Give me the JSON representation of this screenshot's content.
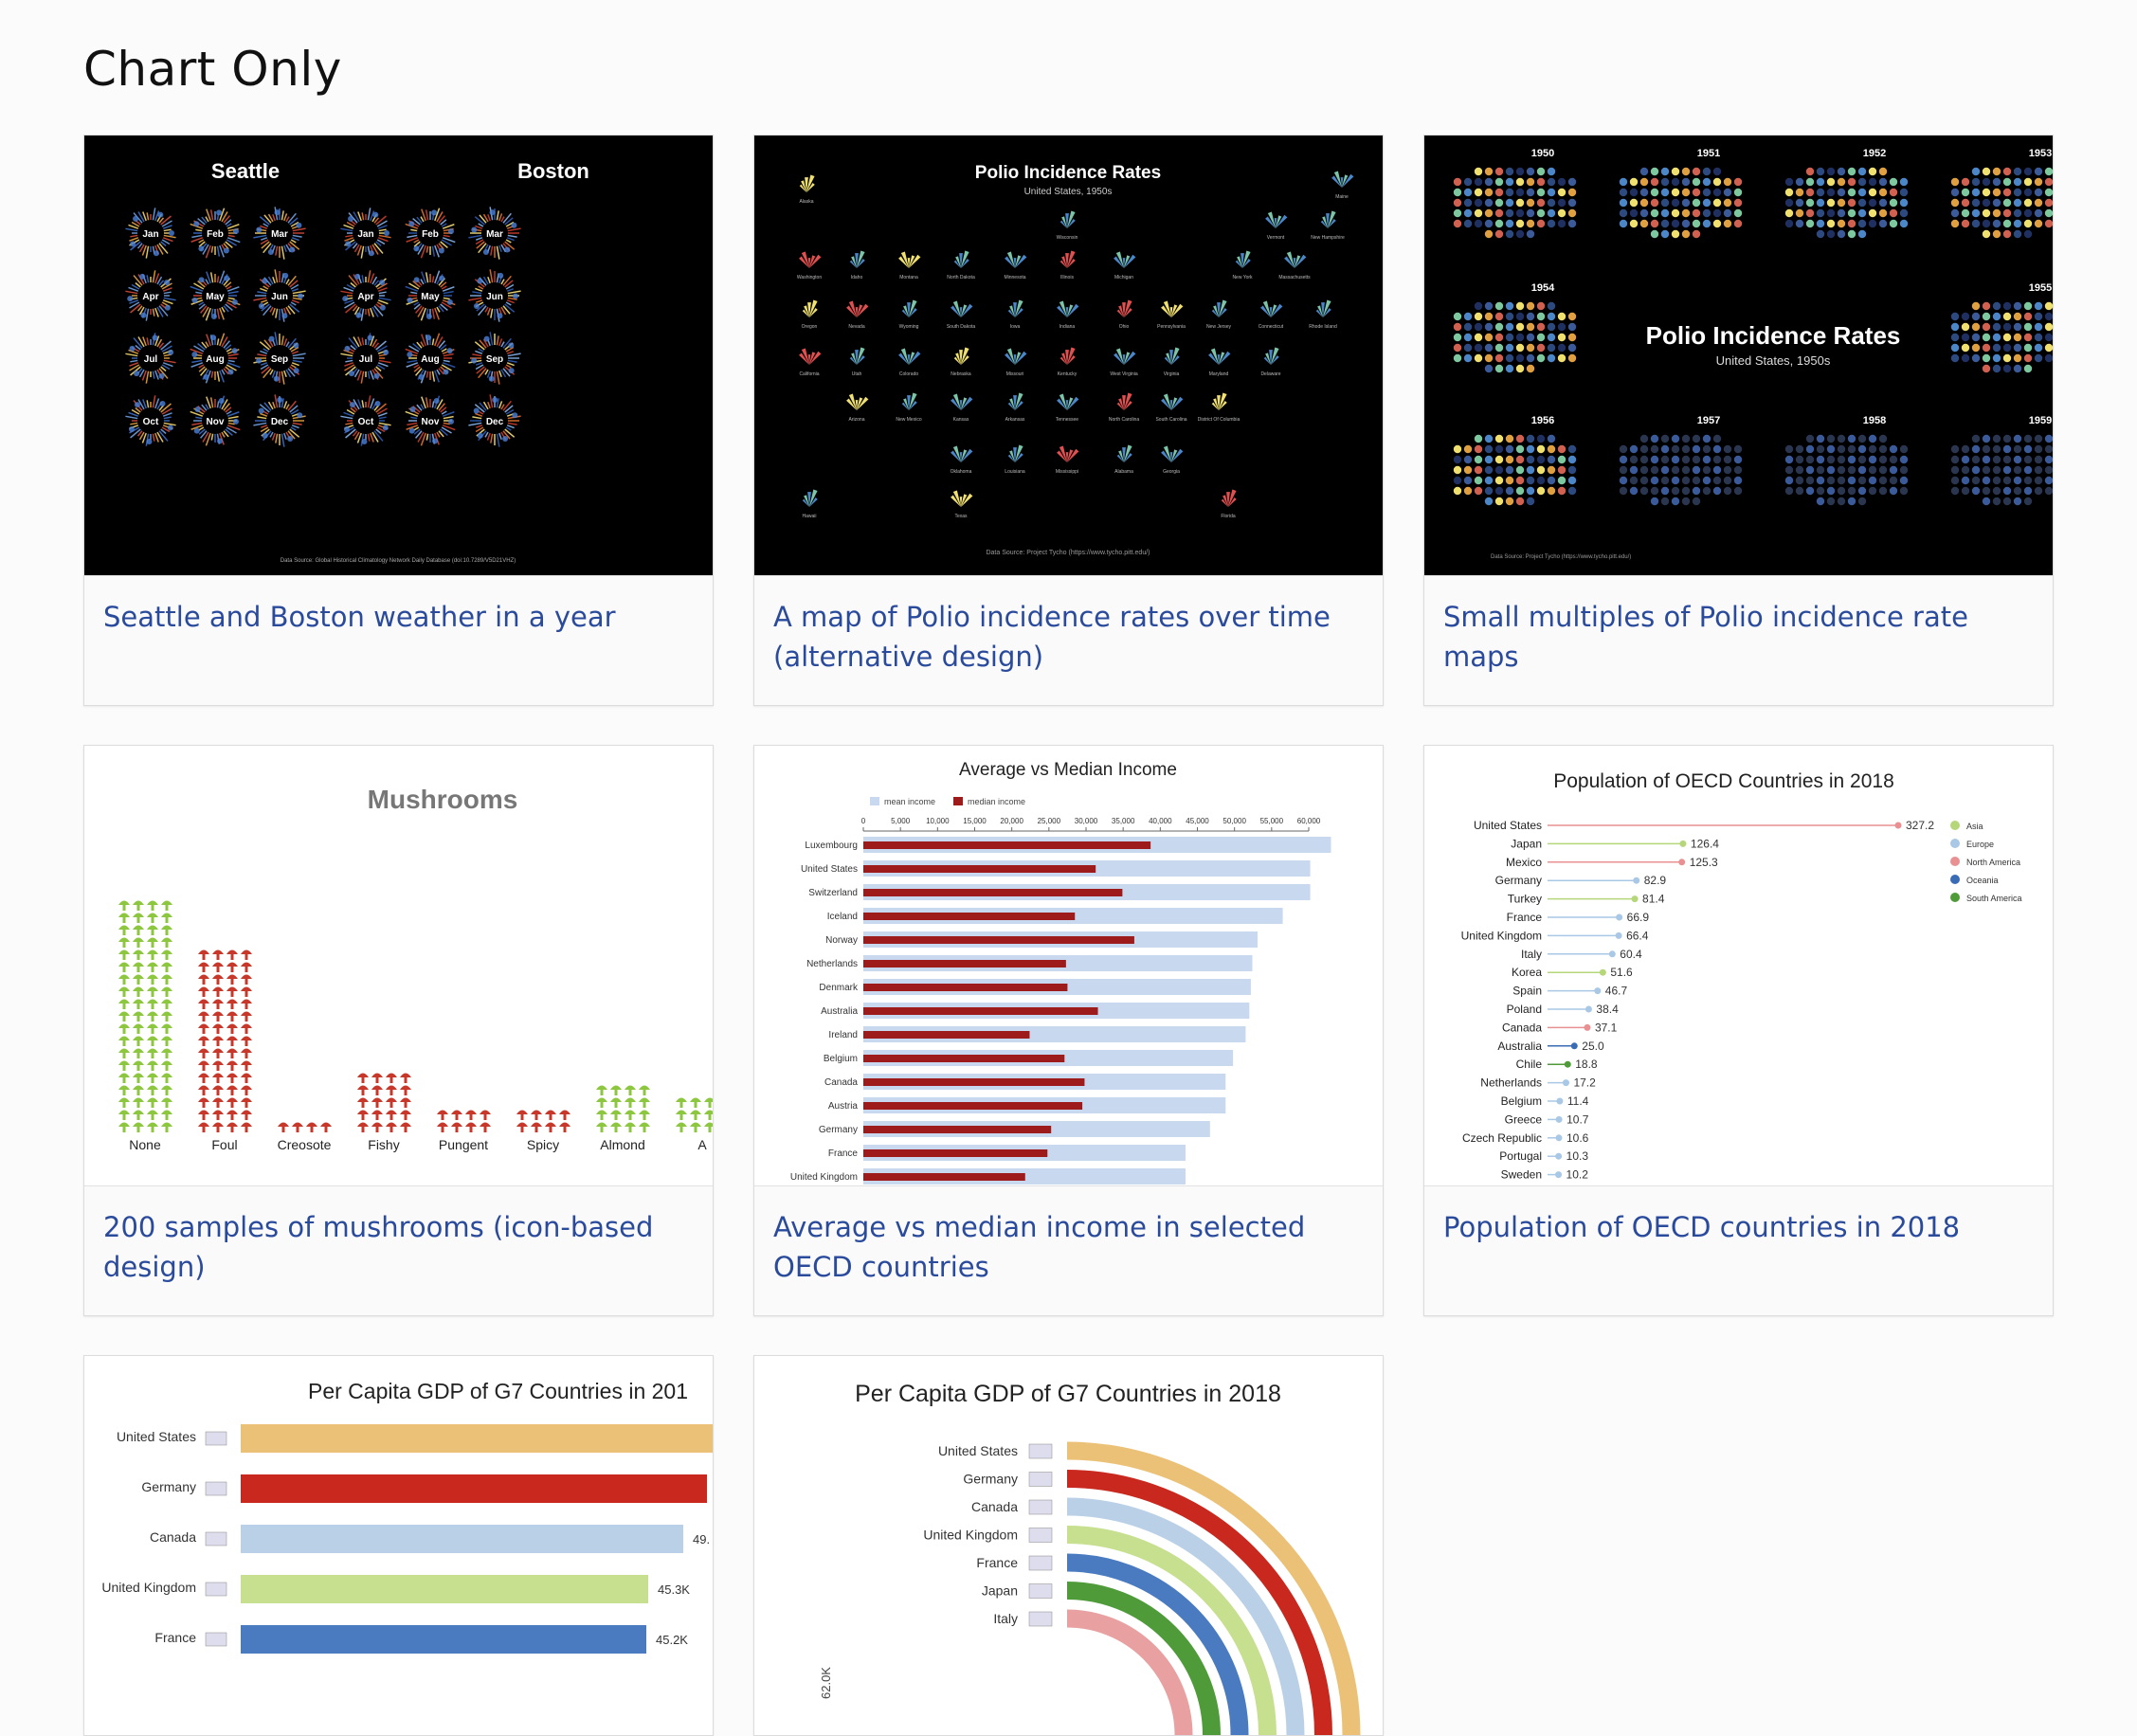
{
  "page": {
    "title": "Chart Only"
  },
  "cards": [
    {
      "caption": "Seattle and Boston weather in a year",
      "thumb": {
        "cities": [
          "Seattle",
          "Boston"
        ],
        "months": [
          "Jan",
          "Feb",
          "Mar",
          "Apr",
          "May",
          "Jun",
          "Jul",
          "Aug",
          "Sep",
          "Oct",
          "Nov",
          "Dec"
        ],
        "source": "Data Source: Global Historical Climatology Network Daily Database (doi:10.7289/V5D21VHZ)"
      }
    },
    {
      "caption": "A map of Polio incidence rates over time (alternative design)",
      "thumb": {
        "title": "Polio Incidence Rates",
        "subtitle": "United States, 1950s",
        "source": "Data Source: Project Tycho (https://www.tycho.pitt.edu/)",
        "states": [
          "Alaska",
          "Maine",
          "Wisconsin",
          "Vermont",
          "New Hampshire",
          "Washington",
          "Idaho",
          "Montana",
          "North Dakota",
          "Minnesota",
          "Illinois",
          "Michigan",
          "New York",
          "Massachusetts",
          "Oregon",
          "Nevada",
          "Wyoming",
          "South Dakota",
          "Iowa",
          "Indiana",
          "Ohio",
          "Pennsylvania",
          "New Jersey",
          "Connecticut",
          "Rhode Island",
          "California",
          "Utah",
          "Colorado",
          "Nebraska",
          "Missouri",
          "Kentucky",
          "West Virginia",
          "Virginia",
          "Maryland",
          "Delaware",
          "Arizona",
          "New Mexico",
          "Kansas",
          "Arkansas",
          "Tennessee",
          "North Carolina",
          "South Carolina",
          "District Of Columbia",
          "Oklahoma",
          "Louisiana",
          "Mississippi",
          "Alabama",
          "Georgia",
          "Hawaii",
          "Texas",
          "Florida"
        ]
      }
    },
    {
      "caption": "Small multiples of Polio incidence rate maps",
      "thumb": {
        "title": "Polio Incidence Rates",
        "subtitle": "United States, 1950s",
        "years": [
          "1950",
          "1951",
          "1952",
          "1953",
          "1954",
          "1955",
          "1956",
          "1957",
          "1958",
          "1959"
        ],
        "source": "Data Source: Project Tycho (https://www.tycho.pitt.edu/)"
      }
    },
    {
      "caption": "200 samples of mushrooms (icon-based design)",
      "thumb": {
        "title": "Mushrooms",
        "categories": [
          "None",
          "Foul",
          "Creosote",
          "Fishy",
          "Pungent",
          "Spicy",
          "Almond",
          "A"
        ]
      }
    },
    {
      "caption": "Average vs median income in selected OECD countries",
      "thumb": {
        "title": "Average vs Median Income",
        "legend": [
          "mean income",
          "median income"
        ],
        "ticks": [
          "0",
          "5,000",
          "10,000",
          "15,000",
          "20,000",
          "25,000",
          "30,000",
          "35,000",
          "40,000",
          "45,000",
          "50,000",
          "55,000",
          "60,000"
        ],
        "countries": [
          "Luxembourg",
          "United States",
          "Switzerland",
          "Iceland",
          "Norway",
          "Netherlands",
          "Denmark",
          "Australia",
          "Ireland",
          "Belgium",
          "Canada",
          "Austria",
          "Germany",
          "France",
          "United Kingdom"
        ],
        "mean": [
          63000,
          60200,
          60200,
          56500,
          53100,
          52400,
          52200,
          52000,
          51500,
          49800,
          48800,
          48800,
          46700,
          43400,
          43400
        ],
        "median": [
          38700,
          31300,
          34900,
          28500,
          36500,
          27300,
          27500,
          31600,
          22400,
          27100,
          29800,
          29500,
          25300,
          24800,
          21800
        ]
      }
    },
    {
      "caption": "Population of OECD countries in 2018",
      "thumb": {
        "title": "Population of OECD Countries in 2018",
        "legend": [
          "Asia",
          "Europe",
          "North America",
          "Oceania",
          "South America"
        ],
        "countries": [
          "United States",
          "Japan",
          "Mexico",
          "Germany",
          "Turkey",
          "France",
          "United Kingdom",
          "Italy",
          "Korea",
          "Spain",
          "Poland",
          "Canada",
          "Australia",
          "Chile",
          "Netherlands",
          "Belgium",
          "Greece",
          "Czech Republic",
          "Portugal",
          "Sweden"
        ],
        "values": [
          "327.2",
          "126.4",
          "125.3",
          "82.9",
          "81.4",
          "66.9",
          "66.4",
          "60.4",
          "51.6",
          "46.7",
          "38.4",
          "37.1",
          "25.0",
          "18.8",
          "17.2",
          "11.4",
          "10.7",
          "10.6",
          "10.3",
          "10.2"
        ]
      }
    },
    {
      "caption": "",
      "thumb": {
        "title": "Per Capita GDP of G7 Countries in 201",
        "countries": [
          "United States",
          "Germany",
          "Canada",
          "United Kingdom",
          "France"
        ],
        "labels": [
          "",
          "",
          "49.",
          "45.3K",
          "45.2K"
        ]
      }
    },
    {
      "caption": "",
      "thumb": {
        "title": "Per Capita GDP of G7 Countries in 2018",
        "countries": [
          "United States",
          "Germany",
          "Canada",
          "United Kingdom",
          "France",
          "Japan",
          "Italy"
        ],
        "axis_label": "62.0K"
      }
    }
  ]
}
